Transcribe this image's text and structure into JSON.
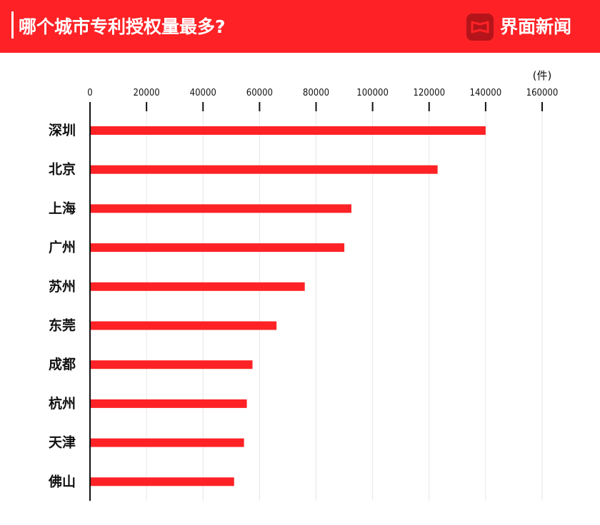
{
  "header": {
    "title": "哪个城市专利授权量最多?",
    "brand": "界面新闻",
    "logo_icon": "jiemian-logo-icon",
    "bar_color": "#fe2226"
  },
  "chart_data": {
    "type": "bar",
    "orientation": "horizontal",
    "title": "哪个城市专利授权量最多?",
    "unit": "(件)",
    "categories": [
      "深圳",
      "北京",
      "上海",
      "广州",
      "苏州",
      "东莞",
      "成都",
      "杭州",
      "天津",
      "佛山"
    ],
    "values": [
      140000,
      123000,
      92500,
      90000,
      76000,
      66000,
      57500,
      55500,
      54500,
      51000
    ],
    "xlim": [
      0,
      160000
    ],
    "xticks": [
      0,
      20000,
      40000,
      60000,
      80000,
      100000,
      120000,
      140000,
      160000
    ],
    "xtick_labels": [
      "0",
      "20000",
      "40000",
      "60000",
      "80000",
      "100000",
      "120000",
      "140000",
      "160000"
    ],
    "axis_position": "top",
    "grid": true,
    "bar_color": "#fe2226",
    "legend": "none"
  }
}
